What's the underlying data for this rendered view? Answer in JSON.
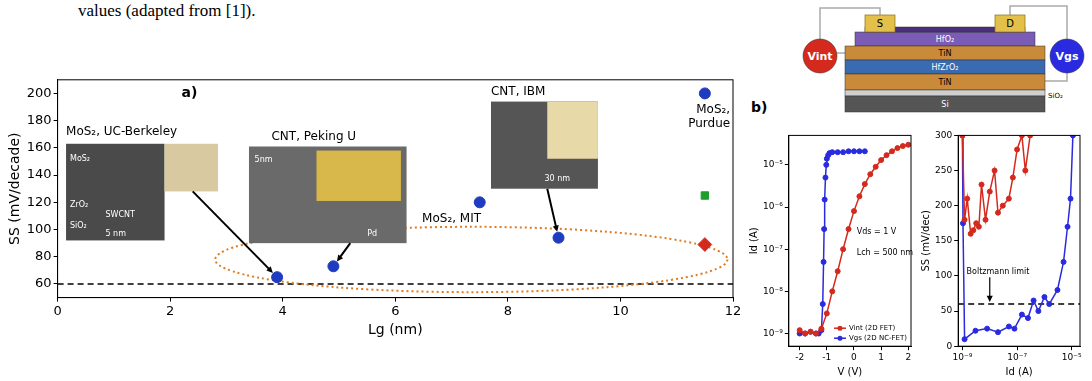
{
  "caption": "values (adapted from [1]).",
  "schematic": {
    "panel_label": "b)",
    "source": "S",
    "drain": "D",
    "layers": [
      "HfO₂",
      "TiN",
      "HfZrO₂",
      "TiN",
      "SiO₂",
      "Si"
    ],
    "terminals": [
      {
        "text": "Vint",
        "color": "#d42a1e"
      },
      {
        "text": "Vgs",
        "color": "#2a2ae0"
      }
    ]
  },
  "chart_data": [
    {
      "type": "scatter",
      "panel_label": "a)",
      "x_label": "Lg (nm)",
      "y_label": "SS (mV/decade)",
      "xlim": [
        0,
        12
      ],
      "xticks": [
        0,
        2,
        4,
        6,
        8,
        10,
        12
      ],
      "ylim": [
        50,
        210
      ],
      "yticks": [
        60,
        80,
        100,
        120,
        140,
        160,
        180,
        200
      ],
      "grid": false,
      "reference_lines": [
        {
          "y": 60,
          "line_style": "dashed",
          "color": "#000000"
        }
      ],
      "series": [
        {
          "color": "#1f3bbf",
          "marker": "circle",
          "x": [
            3.9,
            4.9,
            7.5,
            8.9,
            11.5
          ],
          "values": [
            65,
            73,
            120,
            94,
            200
          ]
        },
        {
          "color": "#1e9e2a",
          "marker": "square",
          "x": [
            11.5
          ],
          "values": [
            125
          ]
        },
        {
          "color": "#d42a1e",
          "marker": "diamond",
          "x": [
            11.5
          ],
          "values": [
            89
          ]
        }
      ],
      "annotations": [
        {
          "text": "MoS₂, UC-Berkeley",
          "inset": [
            "MoS₂",
            "ZrO₂",
            "SiO₂",
            "SWCNT",
            "5 nm"
          ]
        },
        {
          "text": "CNT, Peking U",
          "inset": [
            "5nm",
            "Pd"
          ]
        },
        {
          "text": "CNT, IBM",
          "inset": [
            "30 nm"
          ]
        },
        {
          "text": "MoS₂, MIT"
        },
        {
          "text": "MoS₂, Purdue"
        }
      ]
    },
    {
      "type": "line",
      "x_label": "V (V)",
      "y_label": "Id (A)",
      "log": "y",
      "xlim": [
        -2.4,
        2.1
      ],
      "xticks": [
        -2,
        -1,
        0,
        1,
        2
      ],
      "ylim": [
        5e-10,
        5e-05
      ],
      "yticks": [
        {
          "value": 1e-09,
          "label": "10⁻⁹"
        },
        {
          "value": 1e-08,
          "label": "10⁻⁸"
        },
        {
          "value": 1e-07,
          "label": "10⁻⁷"
        },
        {
          "value": 1e-06,
          "label": "10⁻⁶"
        },
        {
          "value": 1e-05,
          "label": "10⁻⁵"
        }
      ],
      "grid": false,
      "legend": "lower right",
      "annotations": [
        {
          "text": "Vds = 1 V"
        },
        {
          "text": "Lch = 500 nm"
        }
      ],
      "series": [
        {
          "name": "Vint (2D FET)",
          "color": "#d42a1e",
          "marker": "circle",
          "x": [
            -2,
            -1.8,
            -1.6,
            -1.4,
            -1.2,
            -1,
            -0.8,
            -0.6,
            -0.4,
            -0.2,
            0,
            0.2,
            0.4,
            0.6,
            0.8,
            1,
            1.2,
            1.4,
            1.6,
            1.8,
            2
          ],
          "values": [
            1.2e-09,
            1e-09,
            1.1e-09,
            1e-09,
            1.3e-09,
            3e-09,
            1e-08,
            3e-08,
            1e-07,
            3e-07,
            8e-07,
            1.8e-06,
            3.5e-06,
            6e-06,
            9e-06,
            1.3e-05,
            1.7e-05,
            2.1e-05,
            2.5e-05,
            2.8e-05,
            3e-05
          ]
        },
        {
          "name": "Vgs (2D NC-FET)",
          "color": "#2a2ae0",
          "marker": "circle",
          "x": [
            -2,
            -1.8,
            -1.6,
            -1.4,
            -1.3,
            -1.2,
            -1.15,
            -1.12,
            -1.1,
            -1.08,
            -1.05,
            -1.02,
            -1,
            -0.95,
            -0.9,
            -0.8,
            -0.6,
            -0.4,
            -0.2,
            0,
            0.2,
            0.4
          ],
          "values": [
            1e-09,
            1e-09,
            1.1e-09,
            1e-09,
            1e-09,
            1.2e-09,
            5e-09,
            5e-08,
            3e-07,
            1.5e-06,
            5e-06,
            1e-05,
            1.4e-05,
            1.7e-05,
            1.9e-05,
            2e-05,
            2e-05,
            2e-05,
            2.1e-05,
            2.1e-05,
            2.1e-05,
            2.1e-05
          ]
        }
      ]
    },
    {
      "type": "line",
      "x_label": "Id (A)",
      "y_label": "SS (mV/dec)",
      "log": "x",
      "xlim": [
        7e-10,
        2e-05
      ],
      "xticks": [
        {
          "value": 1e-09,
          "label": "10⁻⁹"
        },
        {
          "value": 1e-07,
          "label": "10⁻⁷"
        },
        {
          "value": 1e-05,
          "label": "10⁻⁵"
        }
      ],
      "ylim": [
        0,
        300
      ],
      "yticks": [
        0,
        50,
        100,
        150,
        200,
        250,
        300
      ],
      "grid": false,
      "reference_lines": [
        {
          "y": 60,
          "line_style": "dashed",
          "color": "#000000"
        }
      ],
      "annotations": [
        {
          "text": "Boltzmann limit"
        }
      ],
      "series": [
        {
          "color": "#d42a1e",
          "marker": "circle",
          "x": [
            1e-09,
            1.2e-09,
            1.5e-09,
            2e-09,
            2.5e-09,
            3.2e-09,
            4e-09,
            5e-09,
            7e-09,
            1e-08,
            1.5e-08,
            2e-08,
            3e-08,
            5e-08,
            7e-08,
            1e-07,
            1.5e-07,
            2e-07,
            3e-07
          ],
          "values": [
            300,
            180,
            210,
            160,
            165,
            175,
            170,
            230,
            180,
            220,
            250,
            190,
            200,
            210,
            240,
            280,
            300,
            250,
            300
          ]
        },
        {
          "color": "#2a2ae0",
          "marker": "circle",
          "x": [
            1e-09,
            1.05e-09,
            1.2e-09,
            3e-09,
            8e-09,
            2e-08,
            5e-08,
            8e-08,
            1.5e-07,
            2.5e-07,
            4e-07,
            6e-07,
            1e-06,
            1.5e-06,
            3e-06,
            5e-06,
            7e-06,
            9e-06,
            1.1e-05
          ],
          "values": [
            300,
            175,
            10,
            22,
            25,
            20,
            28,
            25,
            45,
            40,
            65,
            50,
            70,
            60,
            80,
            120,
            170,
            210,
            300
          ]
        }
      ]
    }
  ]
}
